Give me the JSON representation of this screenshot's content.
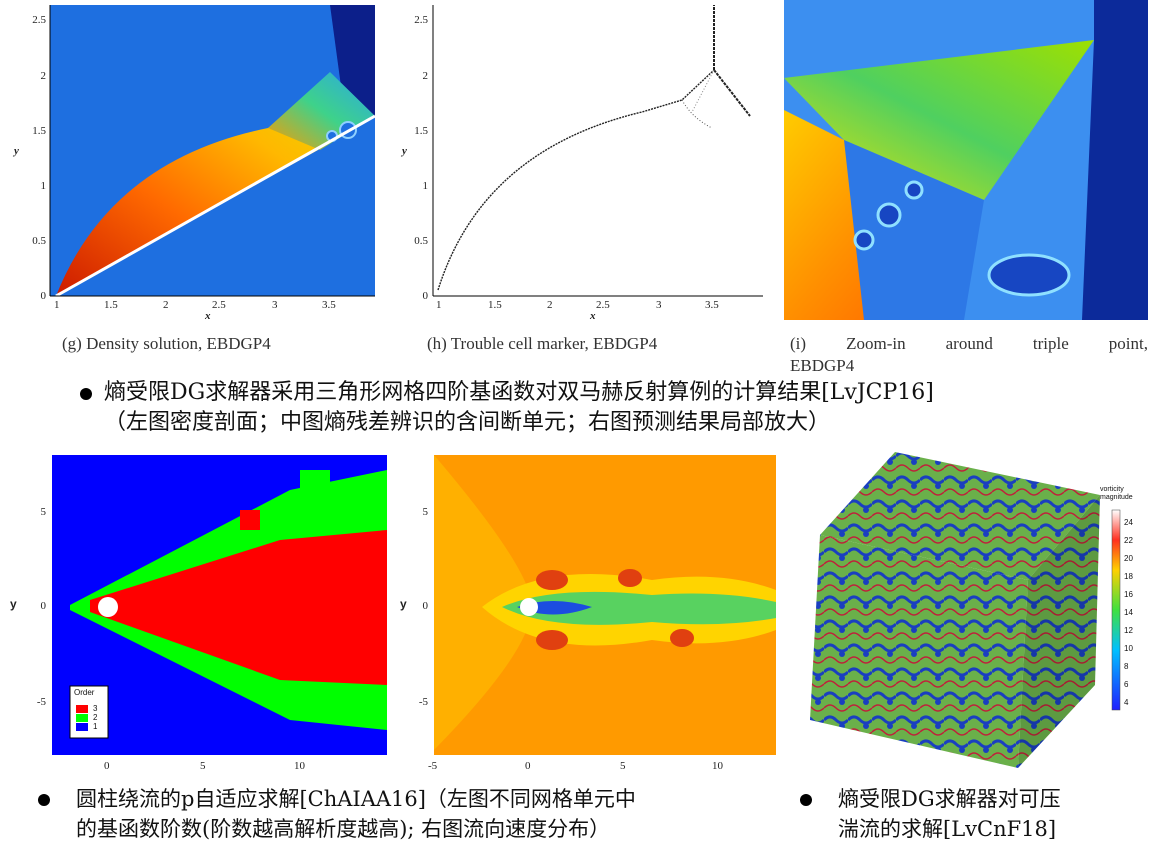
{
  "top_panels": {
    "g": {
      "caption": "(g) Density solution, EBDGP4",
      "xlabel": "x",
      "ylabel": "y",
      "xticks": [
        "1",
        "1.5",
        "2",
        "2.5",
        "3",
        "3.5"
      ],
      "yticks": [
        "0",
        "0.5",
        "1",
        "1.5",
        "2",
        "2.5"
      ]
    },
    "h": {
      "caption": "(h) Trouble cell marker, EBDGP4",
      "xlabel": "x",
      "ylabel": "y",
      "xticks": [
        "1",
        "1.5",
        "2",
        "2.5",
        "3",
        "3.5"
      ],
      "yticks": [
        "0",
        "0.5",
        "1",
        "1.5",
        "2",
        "2.5"
      ]
    },
    "i": {
      "caption_line1": "(i) Zoom-in around triple point,",
      "caption_line2": "EBDGP4"
    }
  },
  "bullet1": {
    "line1": "熵受限DG求解器采用三角形网格四阶基函数对双马赫反射算例的计算结果[LvJCP16]",
    "line2": "（左图密度剖面；中图熵残差辨识的含间断单元；右图预测结果局部放大）"
  },
  "bottom_panels": {
    "left": {
      "ylabel": "y",
      "xticks": [
        "0",
        "5",
        "10"
      ],
      "yticks": [
        "5",
        "0",
        "-5"
      ],
      "legend_title": "Order",
      "legend_items": [
        {
          "label": "3",
          "color": "#ff0000"
        },
        {
          "label": "2",
          "color": "#00ff00"
        },
        {
          "label": "1",
          "color": "#0000ff"
        }
      ]
    },
    "middle": {
      "ylabel": "y",
      "xticks": [
        "-5",
        "0",
        "5",
        "10"
      ],
      "yticks": [
        "5",
        "0",
        "-5"
      ]
    },
    "right": {
      "colorbar_title_line1": "vorticity",
      "colorbar_title_line2": "magnitude",
      "colorbar_ticks": [
        "24",
        "22",
        "20",
        "18",
        "16",
        "14",
        "12",
        "10",
        "8",
        "6",
        "4"
      ]
    }
  },
  "bullet2": {
    "line1": "圆柱绕流的p自适应求解[ChAIAA16]（左图不同网格单元中",
    "line2": "的基函数阶数(阶数越高解析度越高); 右图流向速度分布）"
  },
  "bullet3": {
    "line1": "熵受限DG求解器对可压",
    "line2": "湍流的求解[LvCnF18]"
  }
}
